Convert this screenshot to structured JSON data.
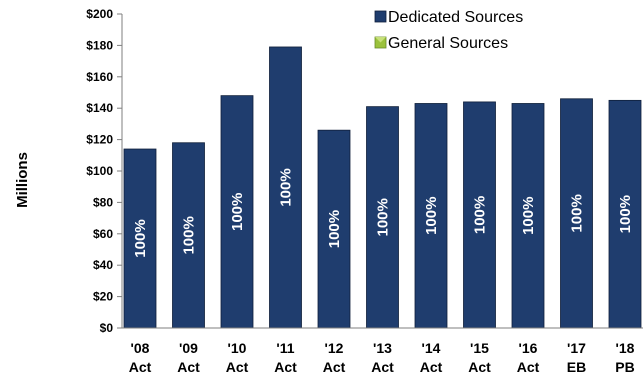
{
  "chart_data": {
    "type": "bar",
    "ylabel": "Millions",
    "ylim": [
      0,
      200
    ],
    "yticks": [
      "$0",
      "$20",
      "$40",
      "$60",
      "$80",
      "$100",
      "$120",
      "$140",
      "$160",
      "$180",
      "$200"
    ],
    "ytick_values": [
      0,
      20,
      40,
      60,
      80,
      100,
      120,
      140,
      160,
      180,
      200
    ],
    "categories": [
      [
        "'08",
        "Act"
      ],
      [
        "'09",
        "Act"
      ],
      [
        "'10",
        "Act"
      ],
      [
        "'11",
        "Act"
      ],
      [
        "'12",
        "Act"
      ],
      [
        "'13",
        "Act"
      ],
      [
        "'14",
        "Act"
      ],
      [
        "'15",
        "Act"
      ],
      [
        "'16",
        "Act"
      ],
      [
        "'17",
        "EB"
      ],
      [
        "'18",
        "PB"
      ]
    ],
    "series": [
      {
        "name": "Dedicated Sources",
        "color": "#1F3D6E",
        "values": [
          114,
          118,
          148,
          179,
          126,
          141,
          143,
          144,
          143,
          146,
          145
        ],
        "labels": [
          "100%",
          "100%",
          "100%",
          "100%",
          "100%",
          "100%",
          "100%",
          "100%",
          "100%",
          "100%",
          "100%"
        ]
      },
      {
        "name": "General Sources",
        "color": "#9BC23C",
        "values": [
          0,
          0,
          0,
          0,
          0,
          0,
          0,
          0,
          0,
          0,
          0
        ]
      }
    ],
    "legend_position": "top-right",
    "grid": false
  }
}
